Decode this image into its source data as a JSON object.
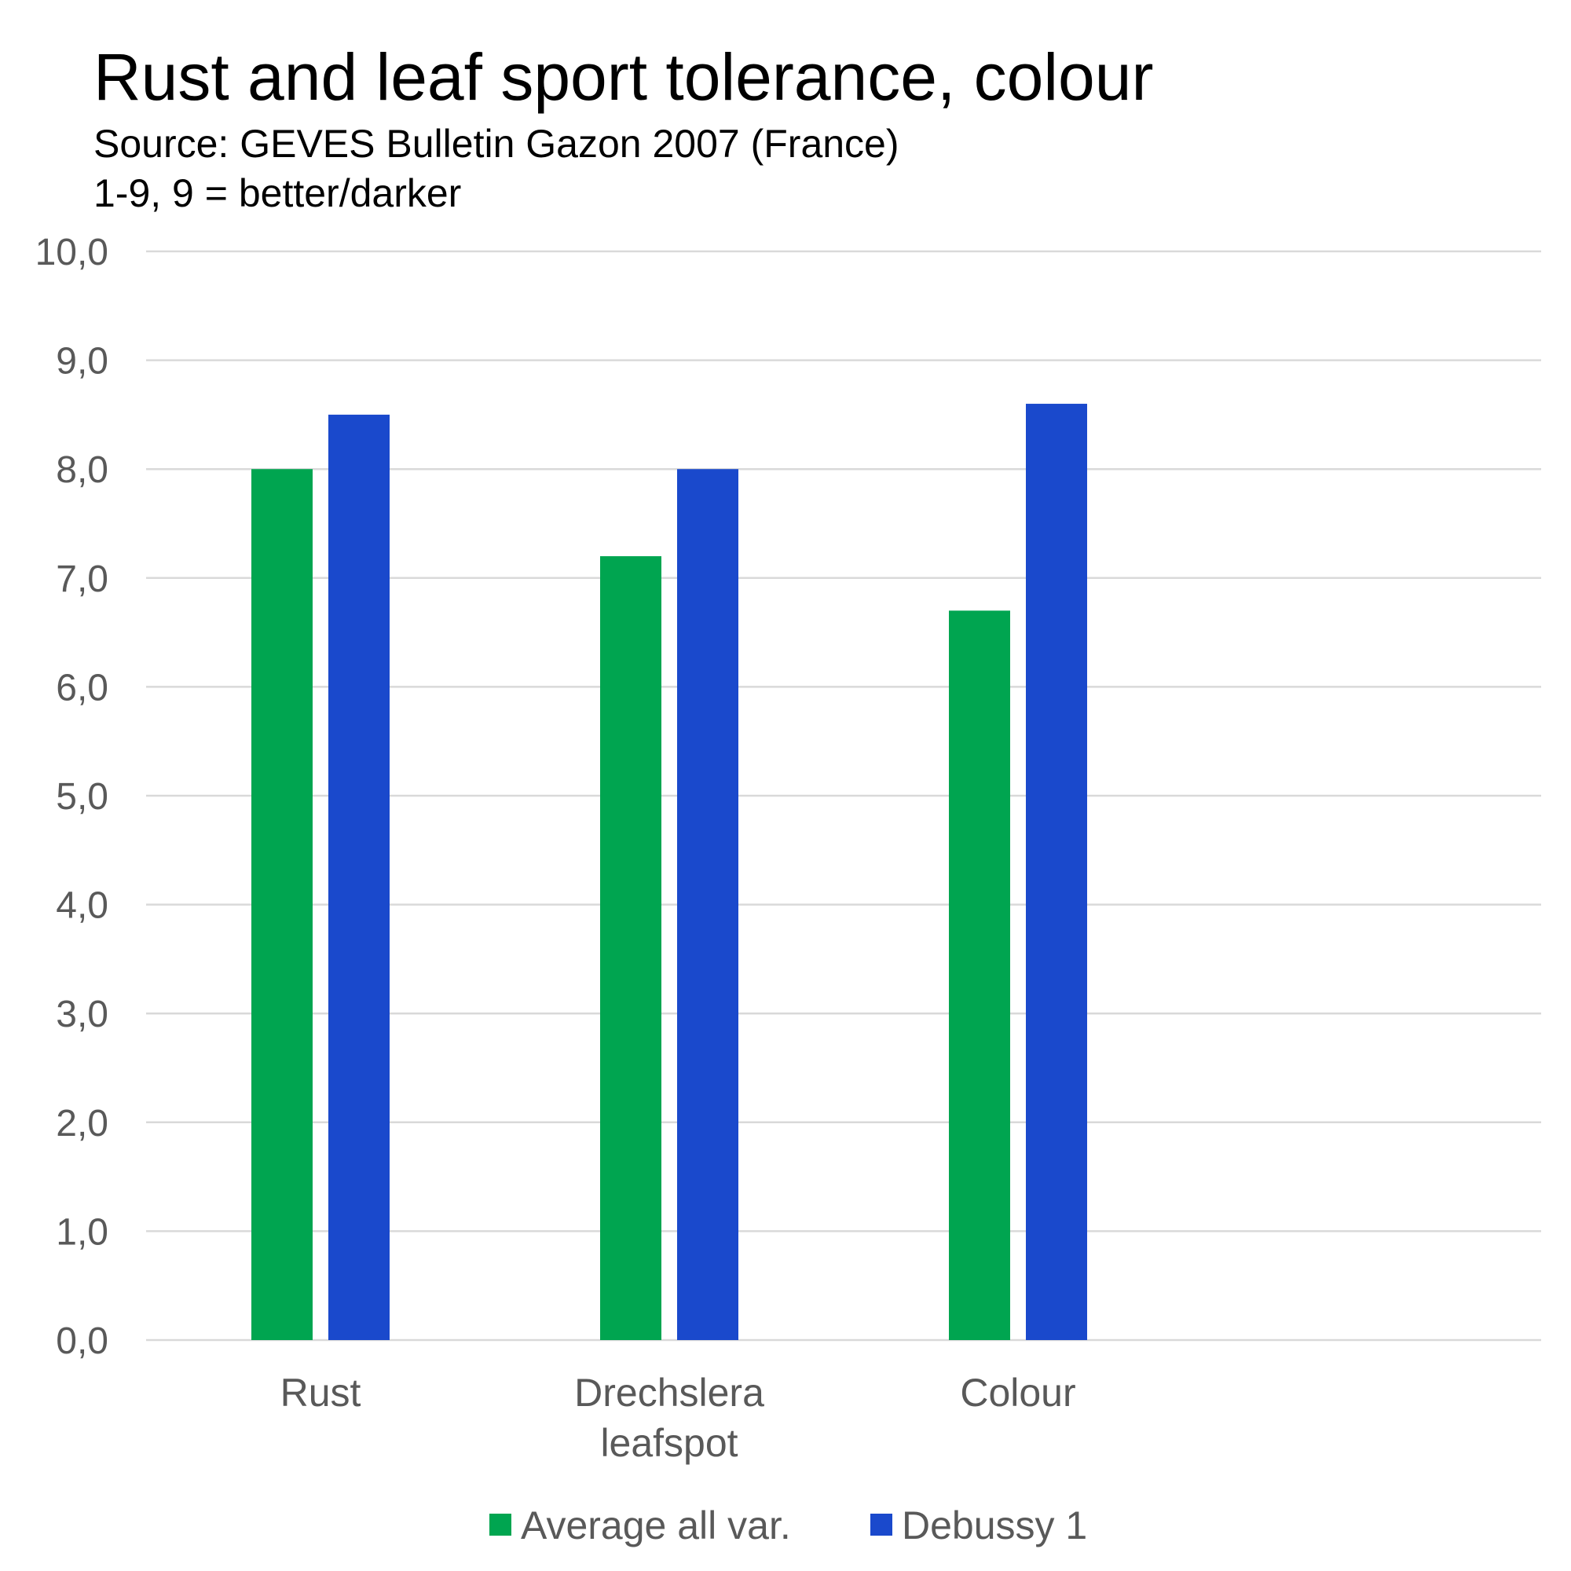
{
  "chart_data": {
    "type": "bar",
    "title": "Rust and leaf sport tolerance, colour",
    "subtitle_lines": [
      "Source: GEVES Bulletin Gazon 2007 (France)",
      "1-9, 9 = better/darker"
    ],
    "xlabel": "",
    "ylabel": "",
    "ylim": [
      0,
      10
    ],
    "yticks": [
      "0,0",
      "1,0",
      "2,0",
      "3,0",
      "4,0",
      "5,0",
      "6,0",
      "7,0",
      "8,0",
      "9,0",
      "10,0"
    ],
    "categories": [
      [
        "Rust"
      ],
      [
        "Drechslera",
        "leafspot"
      ],
      [
        "Colour"
      ],
      []
    ],
    "series": [
      {
        "name": "Average all var.",
        "color": "#00a550",
        "values": [
          8.0,
          7.2,
          6.7,
          null
        ]
      },
      {
        "name": "Debussy 1",
        "color": "#1a49cc",
        "values": [
          8.5,
          8.0,
          8.6,
          null
        ]
      }
    ],
    "grid": true,
    "legend_position": "bottom"
  }
}
